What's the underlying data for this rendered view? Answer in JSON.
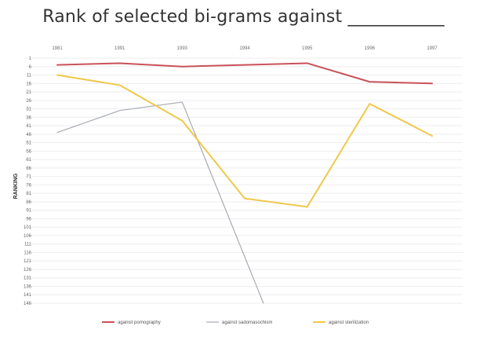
{
  "slide": {
    "title": "Rank of selected bi-grams against ___________"
  },
  "chart_data": {
    "type": "line",
    "title": "",
    "ylabel": "RANKING",
    "xlabel": "",
    "categories": [
      "1981",
      "1991",
      "1993",
      "1994",
      "1995",
      "1996",
      "1997"
    ],
    "x_axis_position": "top",
    "y_reversed": true,
    "ylim": [
      1,
      146
    ],
    "yticks": [
      1,
      6,
      11,
      16,
      21,
      26,
      31,
      36,
      41,
      46,
      51,
      56,
      61,
      66,
      71,
      76,
      81,
      86,
      91,
      96,
      101,
      106,
      111,
      116,
      121,
      126,
      131,
      136,
      141,
      146
    ],
    "grid": true,
    "legend_position": "bottom",
    "series": [
      {
        "name": "against pornography",
        "color": "#c9525a",
        "values": [
          5,
          4,
          6,
          5,
          4,
          15,
          16
        ]
      },
      {
        "name": "against sadomasochism",
        "color": "#a6aab2",
        "values": [
          45,
          32,
          27,
          null,
          null,
          null,
          null
        ],
        "end_point": {
          "x_index": 3.3,
          "y": 146
        }
      },
      {
        "name": "against sterilization",
        "color": "#efc84a",
        "values": [
          11,
          17,
          38,
          84,
          89,
          28,
          47
        ]
      }
    ]
  }
}
